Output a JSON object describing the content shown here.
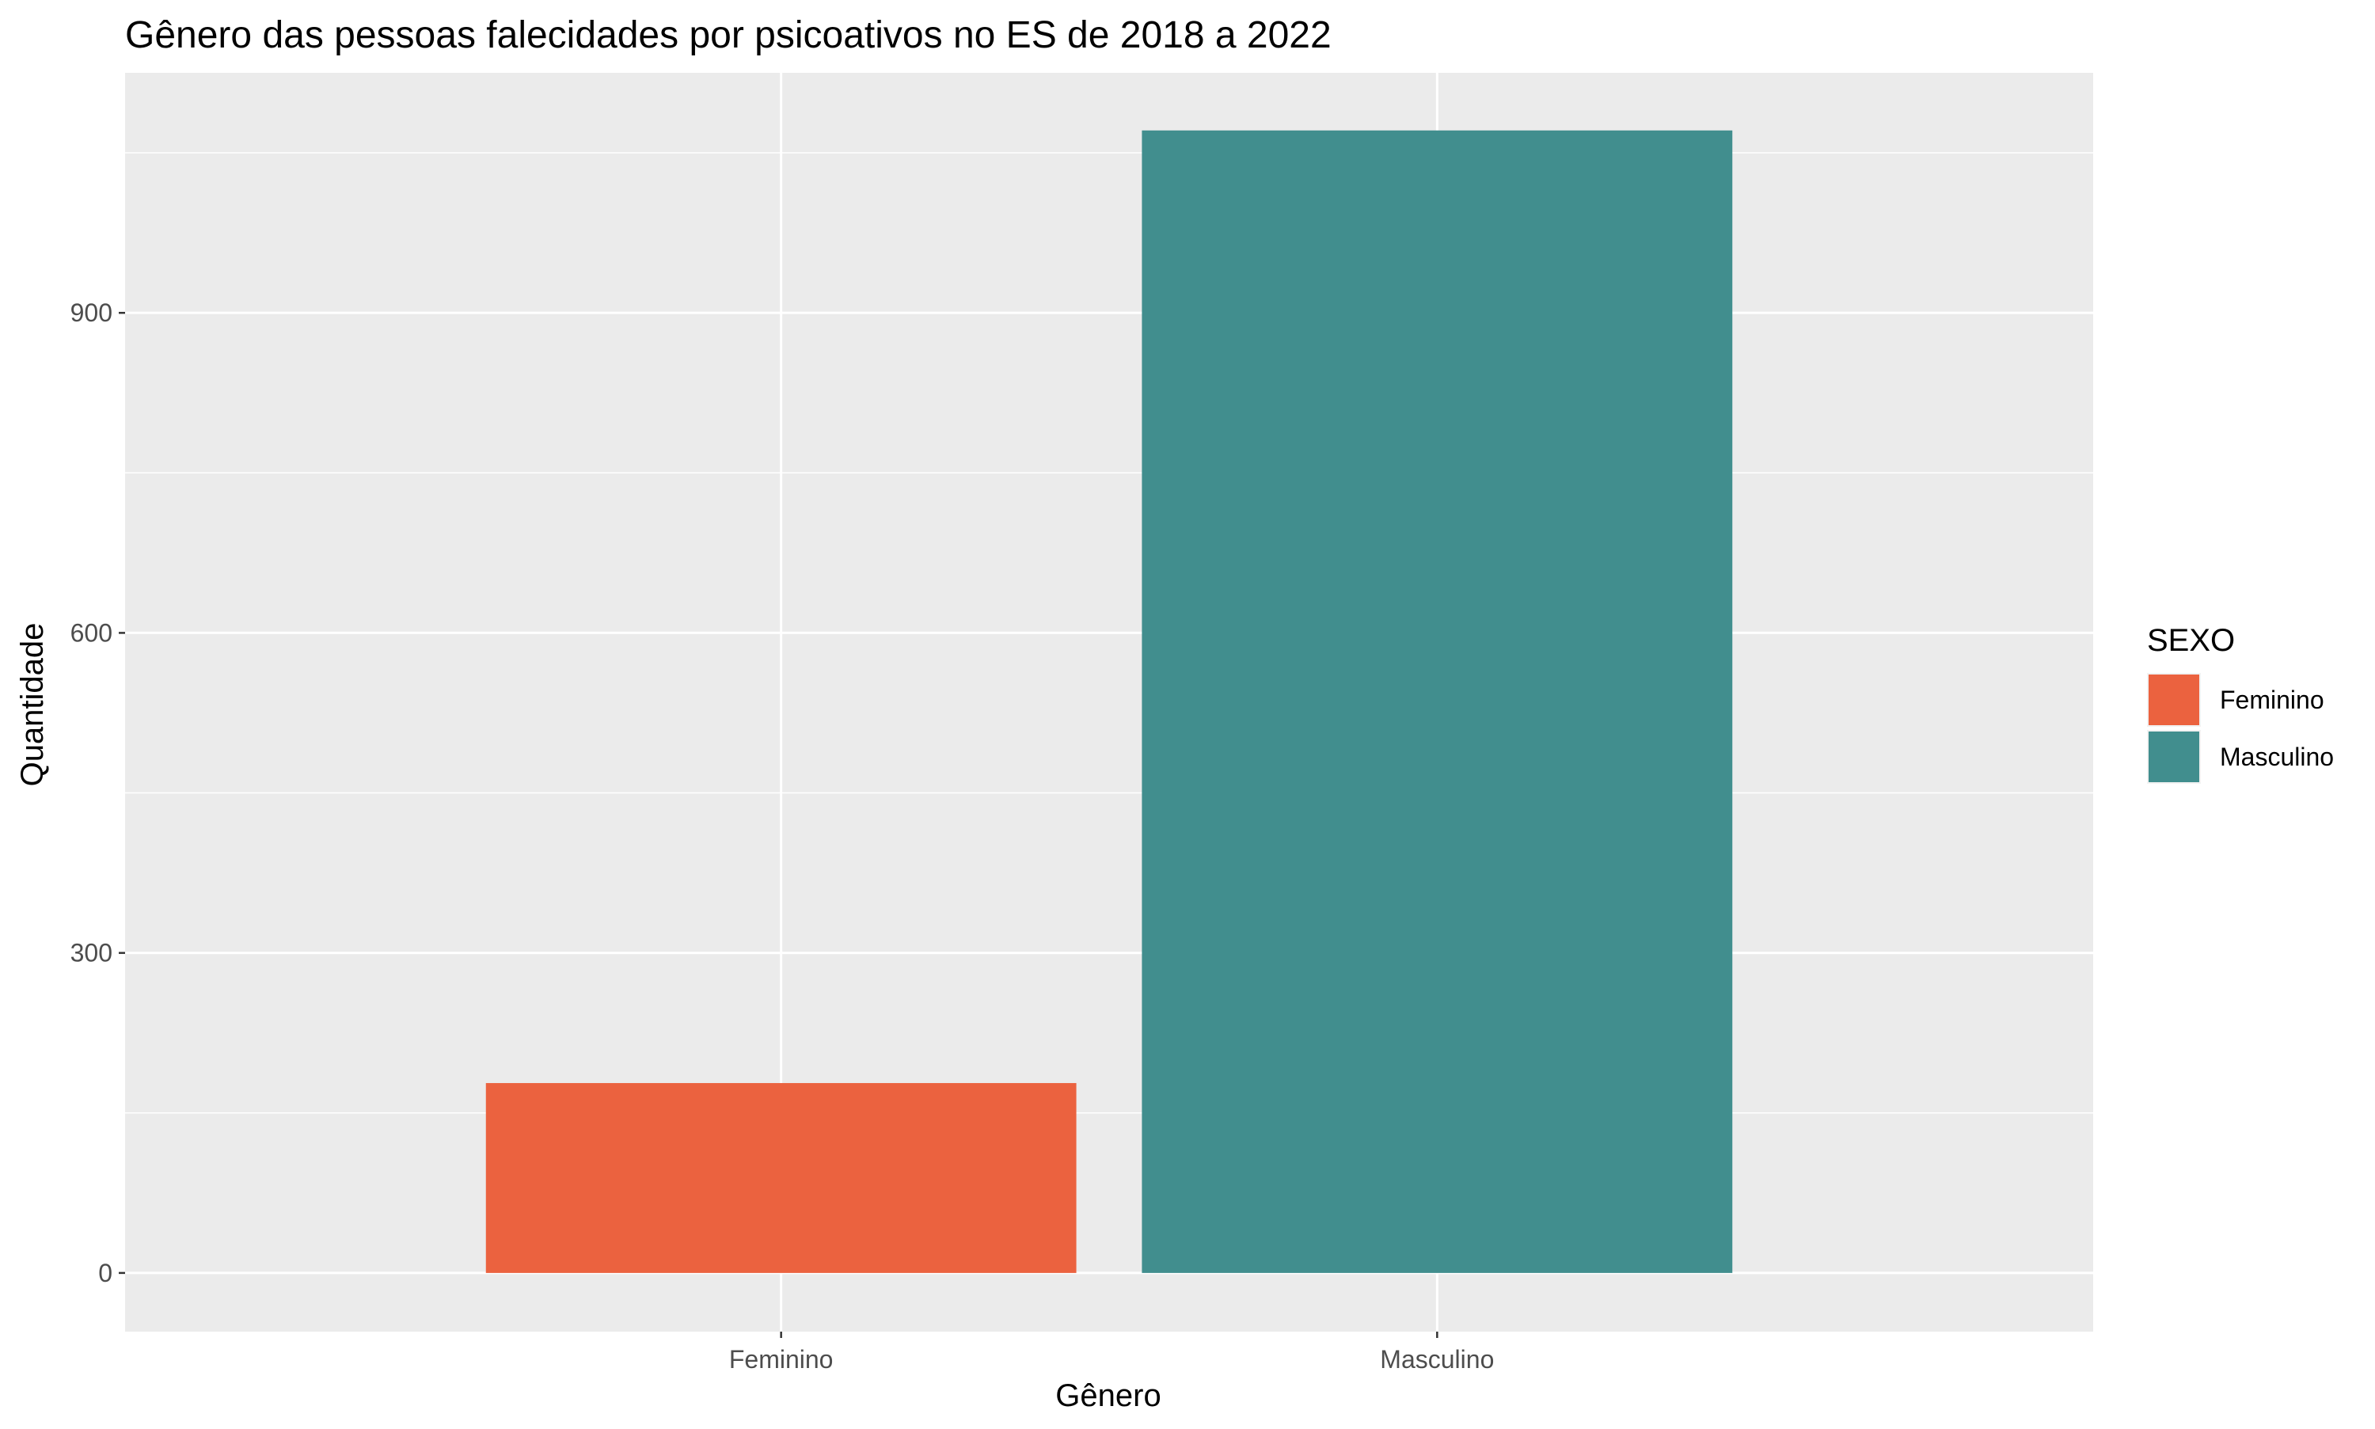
{
  "chart_data": {
    "type": "bar",
    "title": "Gênero das pessoas falecidades por psicoativos no ES de 2018 a 2022",
    "xlabel": "Gênero",
    "ylabel": "Quantidade",
    "categories": [
      "Feminino",
      "Masculino"
    ],
    "values": [
      178,
      1071
    ],
    "colors": [
      "#EB623F",
      "#418E8E"
    ],
    "ylim": [
      -55,
      1125
    ],
    "yticks": [
      0,
      300,
      600,
      900
    ],
    "grid": true,
    "panel_background": "#EBEBEB",
    "grid_color": "#FFFFFF",
    "legend": {
      "title": "SEXO",
      "position": "right",
      "items": [
        {
          "label": "Feminino",
          "color": "#EB623F"
        },
        {
          "label": "Masculino",
          "color": "#418E8E"
        }
      ]
    }
  }
}
